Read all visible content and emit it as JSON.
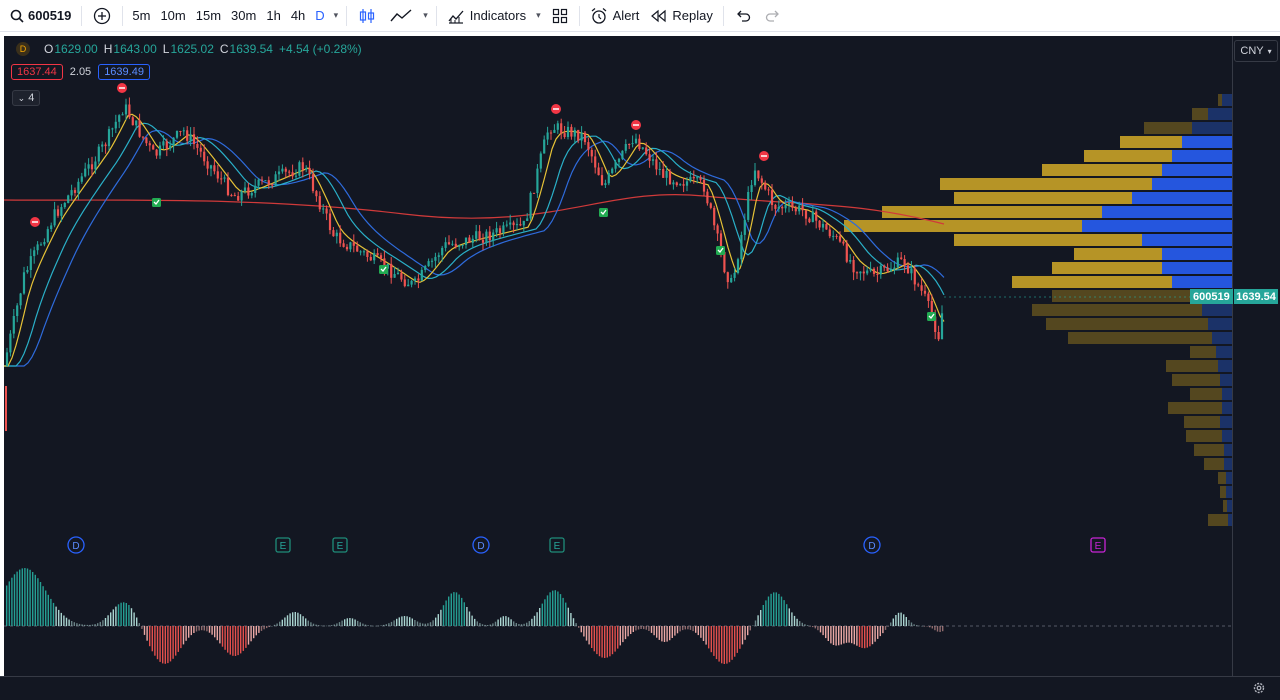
{
  "toolbar": {
    "symbol": "600519",
    "intervals": [
      "5m",
      "10m",
      "15m",
      "30m",
      "1h",
      "4h",
      "D"
    ],
    "active_interval": "D",
    "indicators_label": "Indicators",
    "alert_label": "Alert",
    "replay_label": "Replay"
  },
  "legend": {
    "exchange_badge": "D",
    "o_label": "O",
    "o_value": "1629.00",
    "h_label": "H",
    "h_value": "1643.00",
    "l_label": "L",
    "l_value": "1625.02",
    "c_label": "C",
    "c_value": "1639.54",
    "change": "+4.54 (+0.28%)",
    "bid": "1637.44",
    "spread": "2.05",
    "ask": "1639.49",
    "indicator_count": "4"
  },
  "price_scale": {
    "currency": "CNY",
    "symbol_tag": "600519",
    "last_price": "1639.54"
  },
  "events": [
    {
      "type": "D",
      "x": 76
    },
    {
      "type": "E",
      "x": 283
    },
    {
      "type": "E",
      "x": 340
    },
    {
      "type": "D",
      "x": 481
    },
    {
      "type": "E",
      "x": 557
    },
    {
      "type": "D",
      "x": 872
    },
    {
      "type": "E",
      "x": 1098
    }
  ],
  "colors": {
    "up": "#26a69a",
    "down": "#ef5350",
    "background": "#131722",
    "accent": "#2962ff"
  }
}
